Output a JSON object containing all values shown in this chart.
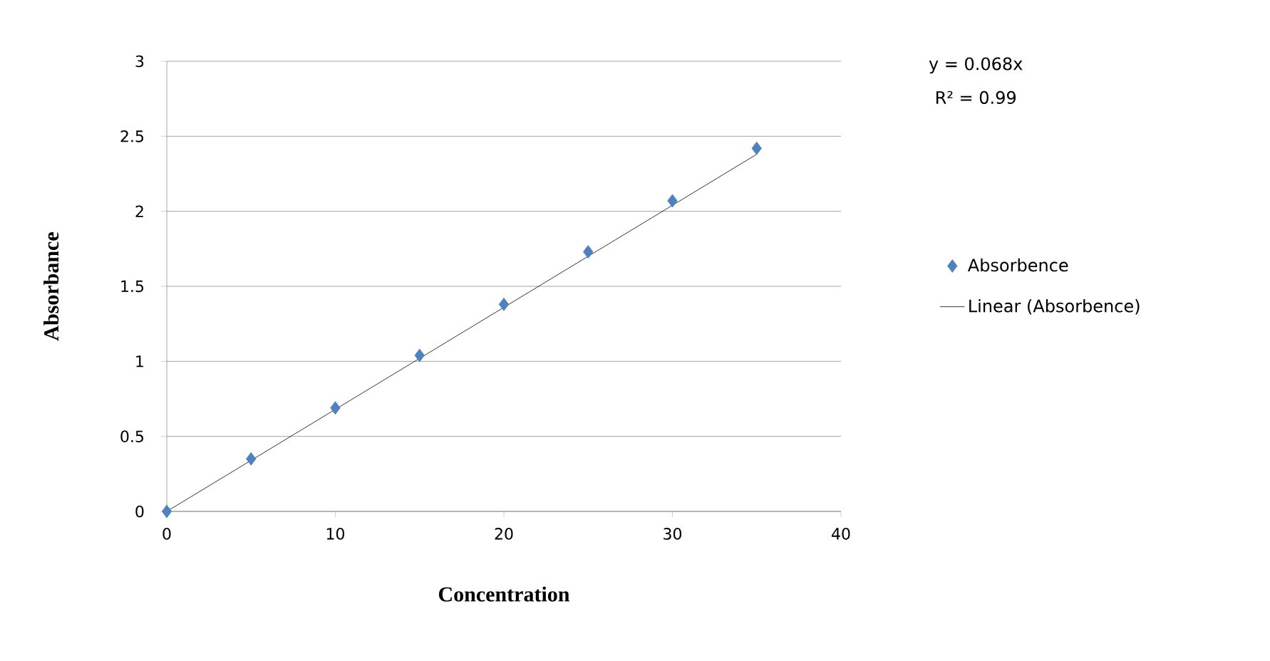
{
  "chart_data": {
    "type": "scatter",
    "xlabel": "Concentration",
    "ylabel": "Absorbance",
    "series": [
      {
        "name": "Absorbence",
        "color": "#4f81bd",
        "marker": "diamond",
        "x": [
          0,
          5,
          10,
          15,
          20,
          25,
          30,
          35
        ],
        "values": [
          0,
          0.35,
          0.69,
          1.04,
          1.38,
          1.73,
          2.07,
          2.42
        ]
      },
      {
        "name": "Linear (Absorbence)",
        "type": "line",
        "color": "#000000",
        "marker": "none",
        "line_style": "solid",
        "x": [
          0,
          35
        ],
        "values": [
          0,
          2.38
        ]
      }
    ],
    "xlim": [
      0,
      40
    ],
    "ylim": [
      0,
      3
    ],
    "xticks": [
      0,
      10,
      20,
      30,
      40
    ],
    "yticks": [
      0,
      0.5,
      1,
      1.5,
      2,
      2.5,
      3
    ],
    "grid": "y",
    "legend": "right",
    "annotations": [
      "y = 0.068x",
      "R² = 0.99"
    ]
  }
}
